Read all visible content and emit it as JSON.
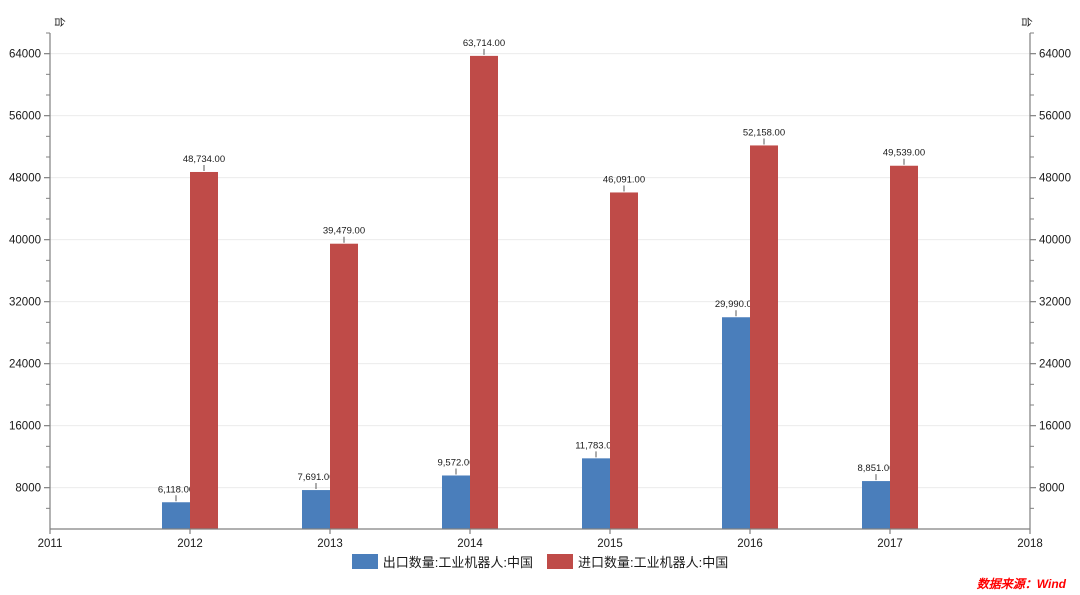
{
  "chart_data": {
    "type": "bar",
    "title": "",
    "unit_label": "台",
    "grid": "horizontal-major-only",
    "legend_position": "bottom-center",
    "x_axis": {
      "ticks": [
        2011,
        2012,
        2013,
        2014,
        2015,
        2016,
        2017,
        2018
      ]
    },
    "y_axis": {
      "min": 2666.67,
      "max": 66666.67,
      "major_ticks": [
        8000,
        16000,
        24000,
        32000,
        40000,
        48000,
        56000,
        64000
      ],
      "minor_step": 2666.67,
      "dual_axis": true
    },
    "categories": [
      2012,
      2013,
      2014,
      2015,
      2016,
      2017
    ],
    "series": [
      {
        "key": "export",
        "name": "出口数量:工业机器人:中国",
        "color": "#4A7EBB",
        "values": [
          6118,
          7691,
          9572,
          11783,
          29990,
          8851
        ],
        "value_labels": [
          "6,118.00",
          "7,691.00",
          "9,572.00",
          "11,783.00",
          "29,990.00",
          "8,851.00"
        ]
      },
      {
        "key": "import",
        "name": "进口数量:工业机器人:中国",
        "color": "#BF4B48",
        "values": [
          48734,
          39479,
          63714,
          46091,
          52158,
          49539
        ],
        "value_labels": [
          "48,734.00",
          "39,479.00",
          "63,714.00",
          "46,091.00",
          "52,158.00",
          "49,539.00"
        ]
      }
    ]
  },
  "source": {
    "text": "数据来源：Wind",
    "color": "#FF0000"
  },
  "colors": {
    "axis": "#808080",
    "gridline": "#ececec",
    "tick_label": "#1a1a1a",
    "data_label": "#1a1a1a",
    "leader_line": "#595959"
  }
}
